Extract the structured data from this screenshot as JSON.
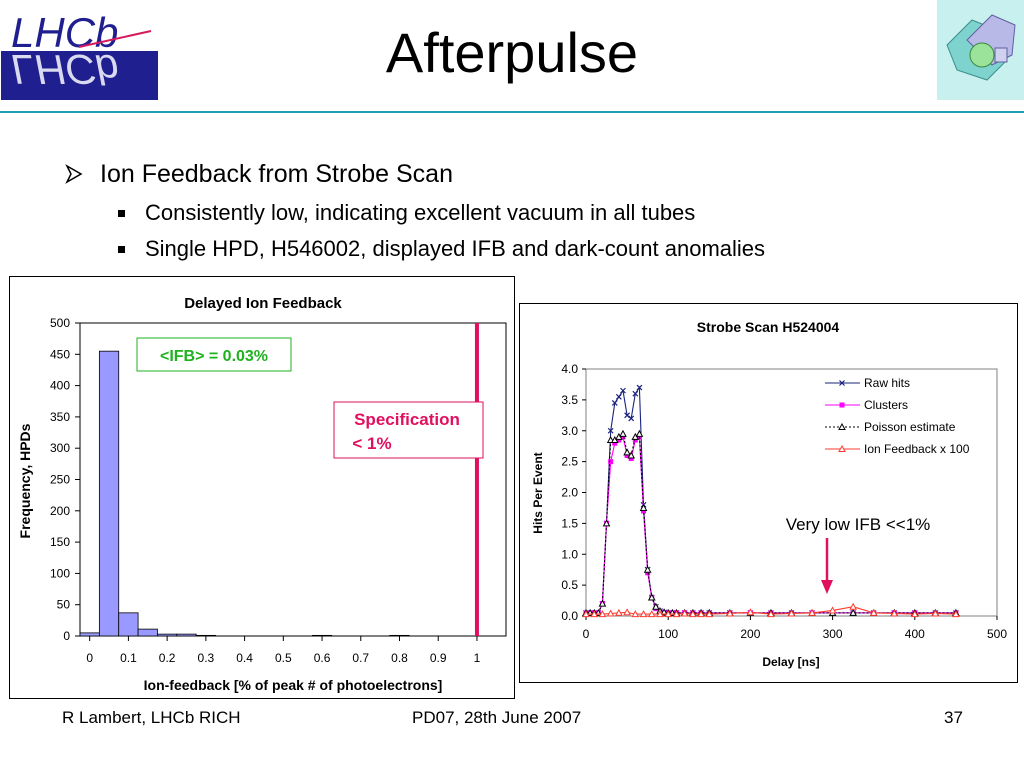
{
  "slide": {
    "title": "Afterpulse",
    "logo_left_text": "LHCb",
    "bullet": "Ion Feedback from Strobe Scan",
    "sub_bullets": [
      "Consistently low, indicating excellent vacuum in all tubes",
      "Single HPD, H546002, displayed IFB and dark-count anomalies"
    ]
  },
  "footer": {
    "left": "R Lambert, LHCb RICH",
    "center": "PD07, 28th June 2007",
    "page": "37"
  },
  "colors": {
    "rule": "#1f9fb3",
    "bar_fill": "#9999ff",
    "spec_line": "#e0105e",
    "annotation_green": "#1fb21f",
    "raw_hits": "#1a237e",
    "clusters": "#ff00ff",
    "poisson": "#000000",
    "ifb": "#ff3b30",
    "arrow": "#e0105e"
  },
  "annotations": {
    "ifb_mean": "<IFB> = 0.03%",
    "spec_line1": "Specification",
    "spec_line2": "< 1%",
    "very_low": "Very low IFB <<1%"
  },
  "chart_data": [
    {
      "type": "bar",
      "title": "Delayed Ion Feedback",
      "xlabel": "Ion-feedback [% of peak # of photoelectrons]",
      "ylabel": "Frequency, HPDs",
      "xlim": [
        -0.025,
        1.075
      ],
      "ylim": [
        0,
        500
      ],
      "xticks": [
        "0",
        "0.1",
        "0.2",
        "0.3",
        "0.4",
        "0.5",
        "0.6",
        "0.7",
        "0.8",
        "0.9",
        "1"
      ],
      "yticks": [
        "0",
        "50",
        "100",
        "150",
        "200",
        "250",
        "300",
        "350",
        "400",
        "450",
        "500"
      ],
      "bin_width": 0.05,
      "bin_starts": [
        -0.025,
        0.025,
        0.075,
        0.125,
        0.175,
        0.225,
        0.275,
        0.325,
        0.375,
        0.425,
        0.475,
        0.525,
        0.575,
        0.625,
        0.675,
        0.725,
        0.775,
        0.825,
        0.875,
        0.925,
        0.975,
        1.025
      ],
      "values": [
        5,
        455,
        37,
        11,
        3,
        3,
        1,
        0,
        0,
        0,
        0,
        0,
        1,
        0,
        0,
        0,
        1,
        0,
        0,
        0,
        0,
        0
      ],
      "spec_x": 1.0,
      "grid": false
    },
    {
      "type": "line",
      "title": "Strobe Scan H524004",
      "xlabel": "Delay [ns]",
      "ylabel": "Hits Per Event",
      "xlim": [
        0,
        500
      ],
      "ylim": [
        0,
        4
      ],
      "xticks": [
        "0",
        "100",
        "200",
        "300",
        "400",
        "500"
      ],
      "yticks": [
        "0.0",
        "0.5",
        "1.0",
        "1.5",
        "2.0",
        "2.5",
        "3.0",
        "3.5",
        "4.0"
      ],
      "legend_position": "top-right",
      "grid": false,
      "series": [
        {
          "name": "Raw hits",
          "marker": "x",
          "x": [
            0,
            5,
            10,
            15,
            20,
            25,
            30,
            35,
            40,
            45,
            50,
            55,
            60,
            65,
            70,
            75,
            80,
            85,
            90,
            95,
            100,
            105,
            110,
            120,
            130,
            140,
            150,
            175,
            200,
            225,
            250,
            275,
            300,
            325,
            350,
            375,
            400,
            425,
            450
          ],
          "y": [
            0.05,
            0.05,
            0.05,
            0.05,
            0.2,
            1.5,
            3.0,
            3.45,
            3.55,
            3.65,
            3.25,
            3.2,
            3.6,
            3.7,
            1.8,
            0.75,
            0.3,
            0.15,
            0.08,
            0.06,
            0.05,
            0.05,
            0.05,
            0.05,
            0.05,
            0.05,
            0.05,
            0.05,
            0.05,
            0.05,
            0.05,
            0.05,
            0.05,
            0.05,
            0.05,
            0.05,
            0.05,
            0.05,
            0.05
          ]
        },
        {
          "name": "Clusters",
          "marker": "square",
          "x": [
            0,
            5,
            10,
            15,
            20,
            25,
            30,
            35,
            40,
            45,
            50,
            55,
            60,
            65,
            70,
            75,
            80,
            85,
            90,
            95,
            100,
            105,
            110,
            120,
            130,
            140,
            150,
            175,
            200,
            225,
            250,
            275,
            300,
            325,
            350,
            375,
            400,
            425,
            450
          ],
          "y": [
            0.05,
            0.05,
            0.05,
            0.05,
            0.2,
            1.5,
            2.5,
            2.8,
            2.85,
            2.9,
            2.6,
            2.55,
            2.85,
            2.9,
            1.7,
            0.7,
            0.3,
            0.12,
            0.07,
            0.05,
            0.05,
            0.05,
            0.05,
            0.05,
            0.05,
            0.05,
            0.05,
            0.05,
            0.05,
            0.05,
            0.05,
            0.05,
            0.05,
            0.05,
            0.05,
            0.05,
            0.05,
            0.05,
            0.05
          ]
        },
        {
          "name": "Poisson estimate",
          "marker": "triangle-open",
          "x": [
            0,
            5,
            10,
            15,
            20,
            25,
            30,
            35,
            40,
            45,
            50,
            55,
            60,
            65,
            70,
            75,
            80,
            85,
            90,
            95,
            100,
            105,
            110,
            120,
            130,
            140,
            150,
            175,
            200,
            225,
            250,
            275,
            300,
            325,
            350,
            375,
            400,
            425,
            450
          ],
          "y": [
            0.05,
            0.05,
            0.05,
            0.05,
            0.2,
            1.5,
            2.85,
            2.85,
            2.9,
            2.95,
            2.65,
            2.6,
            2.9,
            2.95,
            1.75,
            0.75,
            0.3,
            0.15,
            0.08,
            0.06,
            0.05,
            0.05,
            0.05,
            0.05,
            0.05,
            0.05,
            0.05,
            0.05,
            0.05,
            0.05,
            0.05,
            0.05,
            0.05,
            0.05,
            0.05,
            0.05,
            0.05,
            0.05,
            0.05
          ]
        },
        {
          "name": "Ion Feedback x 100",
          "marker": "triangle-open",
          "x": [
            0,
            10,
            20,
            30,
            40,
            50,
            60,
            70,
            80,
            90,
            100,
            110,
            120,
            130,
            140,
            150,
            175,
            200,
            225,
            250,
            275,
            300,
            325,
            350,
            375,
            400,
            425,
            450
          ],
          "y": [
            0.03,
            0.03,
            0.03,
            0.04,
            0.05,
            0.06,
            0.03,
            0.03,
            0.03,
            0.03,
            0.03,
            0.03,
            0.04,
            0.03,
            0.03,
            0.03,
            0.04,
            0.06,
            0.03,
            0.04,
            0.05,
            0.09,
            0.15,
            0.05,
            0.04,
            0.03,
            0.04,
            0.03
          ]
        }
      ]
    }
  ]
}
